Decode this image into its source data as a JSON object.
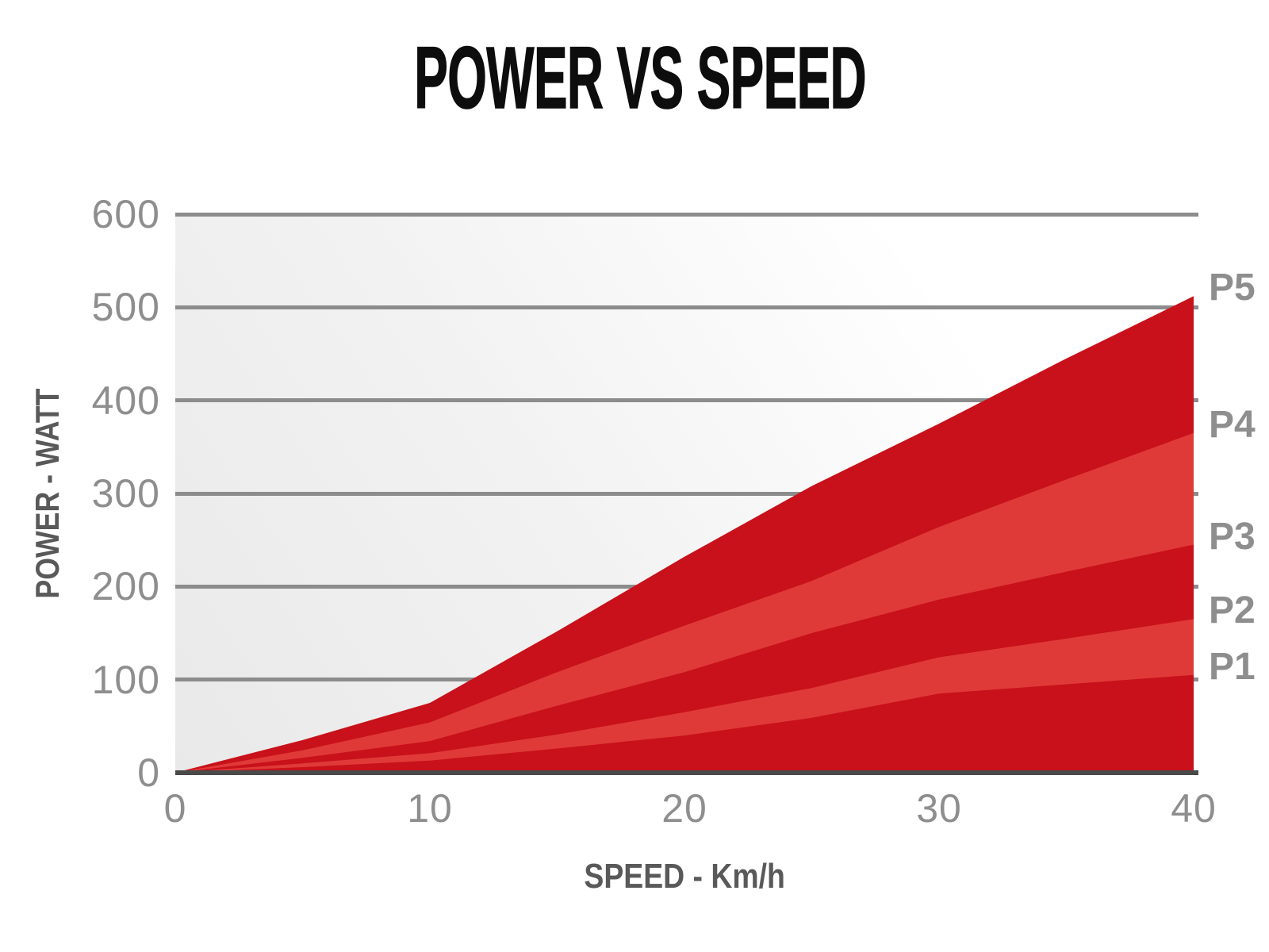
{
  "title": "POWER VS SPEED",
  "y_axis": {
    "title": "POWER - WATT",
    "ticks": [
      600,
      500,
      400,
      300,
      200,
      100,
      0
    ]
  },
  "x_axis": {
    "title": "SPEED - Km/h",
    "ticks": [
      0,
      10,
      20,
      30,
      40
    ]
  },
  "series_labels": [
    "P5",
    "P4",
    "P3",
    "P2",
    "P1"
  ],
  "colors": {
    "area_dark": "#c8111a",
    "area_light": "#e03a38",
    "grid": "#8c8c8c",
    "axis_line": "#4a4a4a",
    "tick_text": "#8e8e8e",
    "axis_title_text": "#595959",
    "title_text": "#0d0d0d",
    "series_label_text": "#8e8e8e"
  },
  "chart_data": {
    "type": "area",
    "title": "POWER VS SPEED",
    "xlabel": "SPEED - Km/h",
    "ylabel": "POWER - WATT",
    "x": [
      0,
      5,
      10,
      15,
      20,
      25,
      30,
      35,
      40
    ],
    "xlim": [
      0,
      40
    ],
    "ylim": [
      0,
      600
    ],
    "grid": "horizontal",
    "legend_position": "right-edge-labels",
    "series": [
      {
        "name": "P5",
        "shade": "dark",
        "values": [
          0,
          35,
          75,
          152,
          232,
          308,
          375,
          445,
          512
        ]
      },
      {
        "name": "P4",
        "shade": "light",
        "values": [
          0,
          24,
          54,
          108,
          158,
          206,
          264,
          315,
          365
        ]
      },
      {
        "name": "P3",
        "shade": "dark",
        "values": [
          0,
          16,
          34,
          72,
          108,
          150,
          186,
          216,
          245
        ]
      },
      {
        "name": "P2",
        "shade": "light",
        "values": [
          0,
          10,
          21,
          41,
          65,
          91,
          124,
          144,
          165
        ]
      },
      {
        "name": "P1",
        "shade": "dark",
        "values": [
          0,
          6,
          13,
          26,
          40,
          59,
          85,
          95,
          105
        ]
      }
    ]
  }
}
